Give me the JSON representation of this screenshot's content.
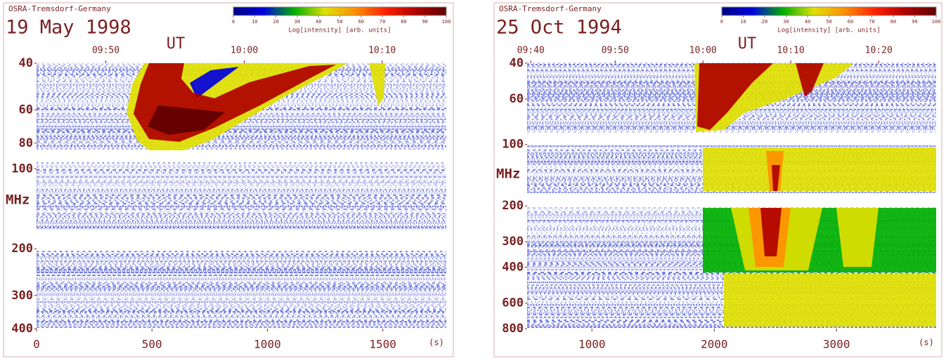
{
  "chart_data": [
    {
      "type": "spectrogram",
      "station": "OSRA-Tremsdorf-Germany",
      "date": "19 May 1998",
      "ut_label": "UT",
      "colorbar": {
        "ticks": [
          0,
          10,
          20,
          30,
          40,
          50,
          60,
          70,
          80,
          90,
          100
        ],
        "label": "Log[intensity] [arb. units]",
        "colors": [
          "#000080",
          "#0000e0",
          "#00b000",
          "#e0e000",
          "#ff9000",
          "#ff2000",
          "#b00000",
          "#600000"
        ]
      },
      "xlim": [
        0,
        1775
      ],
      "xticks": [
        0,
        500,
        1000,
        1500
      ],
      "x_label": "(s)",
      "ut_ticks": [
        {
          "value": 300,
          "label": "09:50"
        },
        {
          "value": 900,
          "label": "10:00"
        },
        {
          "value": 1497,
          "label": "10:10"
        }
      ],
      "ylim": [
        40,
        400
      ],
      "yticks": [
        40,
        60,
        80,
        100,
        200,
        300,
        400
      ],
      "y_unit": "MHz",
      "log_y": true
    },
    {
      "type": "spectrogram",
      "station": "OSRA-Tremsdorf-Germany",
      "date": "25 Oct 1994",
      "ut_label": "UT",
      "colorbar": {
        "ticks": [
          0,
          10,
          20,
          30,
          40,
          50,
          60,
          70,
          80,
          90,
          100
        ],
        "label": "Log[intensity] [arb. units]",
        "colors": [
          "#000080",
          "#0000e0",
          "#00b000",
          "#e0e000",
          "#ff9000",
          "#ff2000",
          "#b00000",
          "#600000"
        ]
      },
      "xlim": [
        470,
        3815
      ],
      "xticks": [
        1000,
        2000,
        3000
      ],
      "x_label": "(s)",
      "ut_ticks": [
        {
          "value": 500,
          "label": "09:40"
        },
        {
          "value": 1190,
          "label": "09:50"
        },
        {
          "value": 1908,
          "label": "10:00"
        },
        {
          "value": 2626,
          "label": "10:10"
        },
        {
          "value": 3345,
          "label": "10:20"
        }
      ],
      "ylim": [
        40,
        800
      ],
      "yticks": [
        40,
        60,
        100,
        200,
        300,
        400,
        600,
        800
      ],
      "y_unit": "MHz",
      "log_y": true
    }
  ]
}
